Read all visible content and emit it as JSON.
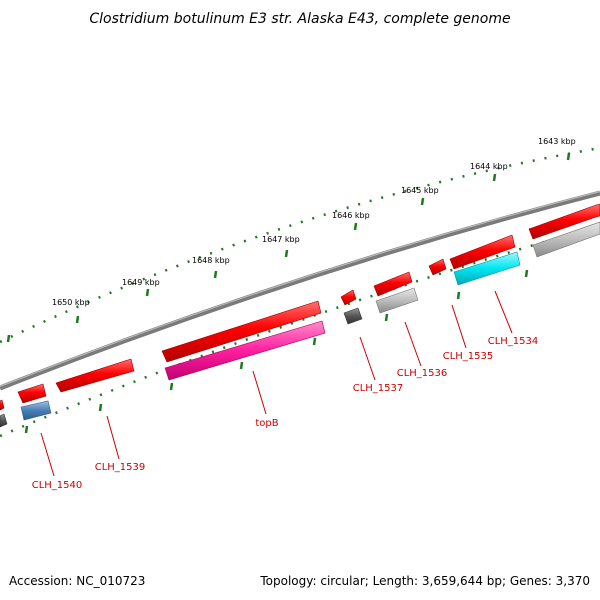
{
  "title": "Clostridium botulinum E3 str. Alaska E43, complete genome",
  "footer": {
    "accession": "Accession: NC_010723",
    "topology": "Topology: circular; Length: 3,659,644 bp; Genes: 3,370"
  },
  "scale_labels": [
    "1643 kbp",
    "1644 kbp",
    "1645 kbp",
    "1646 kbp",
    "1647 kbp",
    "1648 kbp",
    "1649 kbp",
    "1650 kbp"
  ],
  "gene_labels": [
    "CLH_1534",
    "CLH_1535",
    "CLH_1536",
    "CLH_1537",
    "topB",
    "CLH_1539",
    "CLH_1540"
  ],
  "colors": {
    "forward_cds": "#ff0000",
    "reverse_cds": "#b0b0b0",
    "backbone": "#777777",
    "tick": "#1f7a1f",
    "label": "#cc0000",
    "cyan_feature": "#00e5f0",
    "magenta_feature": "#ff1f9f",
    "blue_feature": "#4a7fb5",
    "dark_feature": "#555555"
  }
}
